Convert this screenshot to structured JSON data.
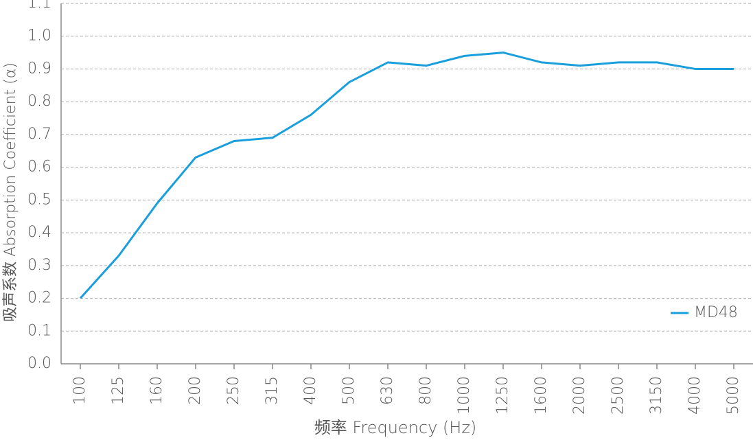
{
  "chart_data": {
    "type": "line",
    "x_label": "频率 Frequency (Hz)",
    "y_label": "吸声系数 Absorption Coefficient (α)",
    "categories": [
      "100",
      "125",
      "160",
      "200",
      "250",
      "315",
      "400",
      "500",
      "630",
      "800",
      "1000",
      "1250",
      "1600",
      "2000",
      "2500",
      "3150",
      "4000",
      "5000"
    ],
    "series": [
      {
        "name": "MD48",
        "color": "#1a9fdc",
        "values": [
          0.2,
          0.33,
          0.49,
          0.63,
          0.68,
          0.69,
          0.76,
          0.86,
          0.92,
          0.91,
          0.94,
          0.95,
          0.92,
          0.91,
          0.92,
          0.92,
          0.9,
          0.9
        ]
      }
    ],
    "ylim": [
      0,
      1.1
    ],
    "yticks": [
      {
        "value": 0,
        "label": "0.0"
      },
      0.1,
      0.2,
      0.3,
      0.4,
      0.5,
      0.6,
      0.7,
      0.8,
      0.9,
      {
        "value": 1,
        "label": "1.0"
      },
      1.1
    ],
    "grid": true,
    "legend": "lower right"
  }
}
